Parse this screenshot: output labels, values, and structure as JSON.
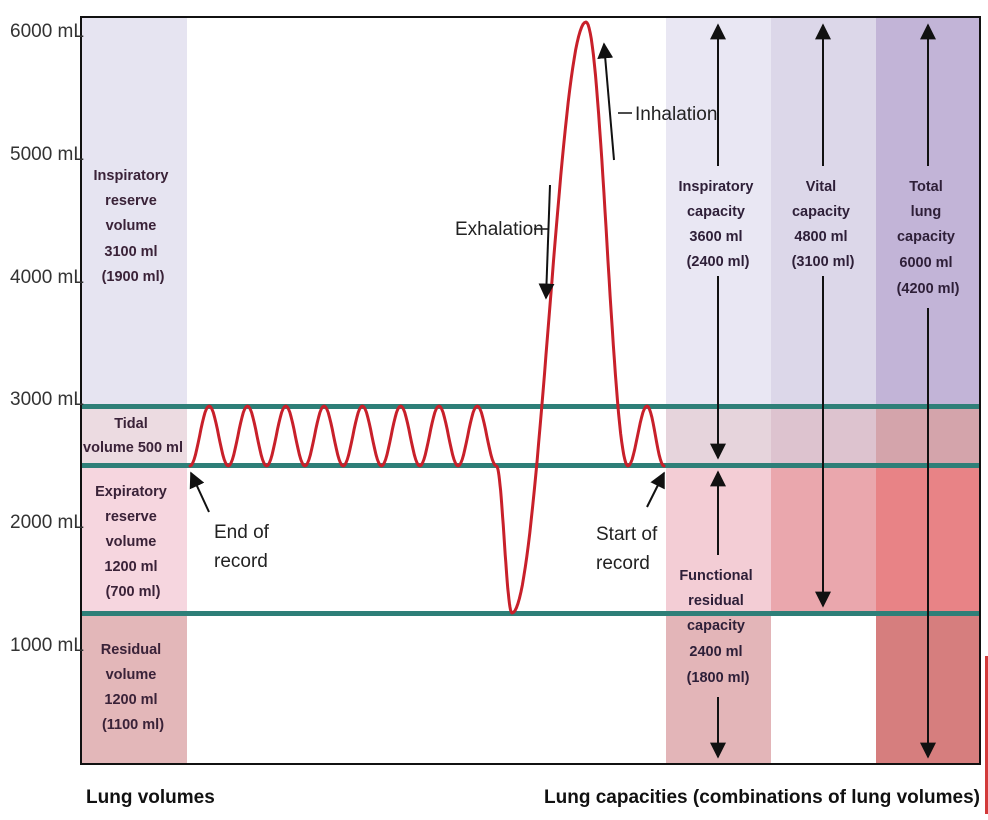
{
  "y_ticks": [
    "6000 mL",
    "5000 mL",
    "4000 mL",
    "3000 mL",
    "2000 mL",
    "1000 mL"
  ],
  "lung_volumes": {
    "irv": [
      "Inspiratory",
      "reserve",
      "volume",
      "3100 ml",
      "(1900 ml)"
    ],
    "tidal": [
      "Tidal",
      "volume 500 ml"
    ],
    "erv": [
      "Expiratory",
      "reserve",
      "volume",
      "1200 ml",
      "(700 ml)"
    ],
    "residual": [
      "Residual",
      "volume",
      "1200 ml",
      "(1100 ml)"
    ]
  },
  "lung_capacities": {
    "inspiratory": [
      "Inspiratory",
      "capacity",
      "3600 ml",
      "(2400 ml)"
    ],
    "vital": [
      "Vital",
      "capacity",
      "4800 ml",
      "(3100 ml)"
    ],
    "total": [
      "Total",
      "lung",
      "capacity",
      "6000 ml",
      "(4200 ml)"
    ],
    "frc": [
      "Functional",
      "residual",
      "capacity",
      "2400 ml",
      "(1800 ml)"
    ]
  },
  "annotations": {
    "inhalation": "Inhalation",
    "exhalation": "Exhalation",
    "end_of_record": [
      "End of",
      "record"
    ],
    "start_of_record": [
      "Start of",
      "record"
    ]
  },
  "footer": {
    "left": "Lung volumes",
    "right": "Lung capacities (combinations of lung volumes)"
  },
  "colors": {
    "trace": "#c8202a",
    "reference_lines": "#2e7f78",
    "irv_zone": "#e6e4f1",
    "tidal_zone": "#ecdbe1",
    "erv_zone": "#f6d6df",
    "residual_zone": "#e3b7b9",
    "inspiratory_capacity_zone": "#e9e7f3",
    "vital_capacity_upper_zone": "#dcd7e9",
    "total_capacity_upper_zone": "#c2b4d7"
  }
}
